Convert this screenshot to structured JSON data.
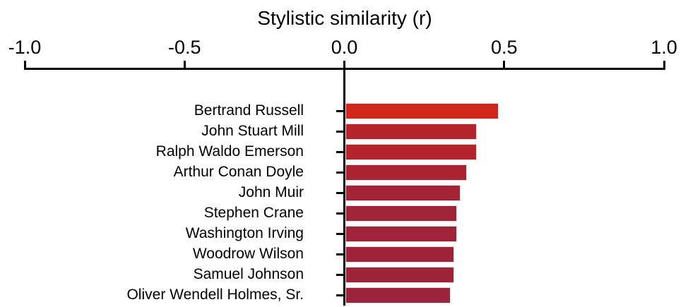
{
  "chart_data": {
    "type": "bar",
    "orientation": "horizontal",
    "title": "Stylistic similarity (r)",
    "xlabel": "Stylistic similarity (r)",
    "ylabel": "",
    "xlim": [
      -1.0,
      1.0
    ],
    "x_tick_labels": [
      "-1.0",
      "-0.5",
      "0.0",
      "0.5",
      "1.0"
    ],
    "x_tick_values": [
      -1.0,
      -0.5,
      0.0,
      0.5,
      1.0
    ],
    "axis_position": "top",
    "grid": false,
    "legend": false,
    "categories": [
      "Bertrand Russell",
      "John Stuart Mill",
      "Ralph Waldo Emerson",
      "Arthur Conan Doyle",
      "John Muir",
      "Stephen Crane",
      "Washington Irving",
      "Woodrow Wilson",
      "Samuel Johnson",
      "Oliver Wendell Holmes, Sr."
    ],
    "values": [
      0.48,
      0.41,
      0.41,
      0.38,
      0.36,
      0.35,
      0.35,
      0.34,
      0.34,
      0.33
    ],
    "bar_colors": [
      "#d1261c",
      "#b4242b",
      "#b3242c",
      "#ab2331",
      "#a42336",
      "#a02338",
      "#9f2339",
      "#9e233a",
      "#9d233b",
      "#9b233c"
    ],
    "baseline_value": 0.0,
    "colors": {
      "axis": "#000000",
      "text": "#000000",
      "background": "#ffffff",
      "bar_edge": "#eddcdc"
    }
  }
}
